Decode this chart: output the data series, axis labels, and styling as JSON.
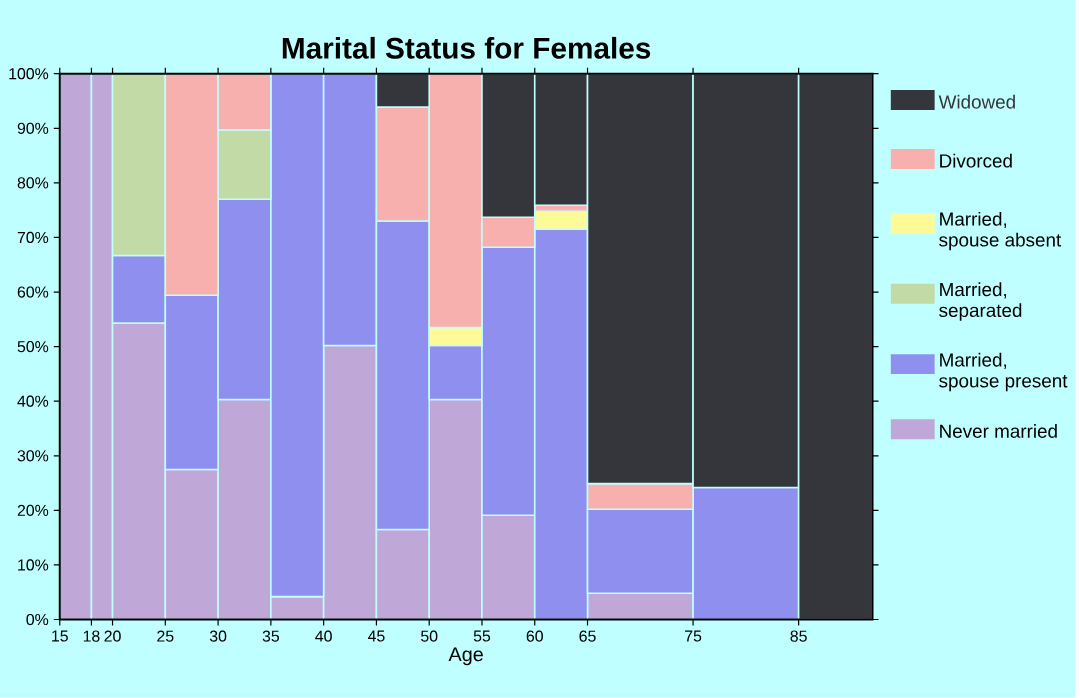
{
  "chart_data": {
    "type": "bar",
    "stacked": true,
    "title": "Marital Status for Females",
    "xlabel": "Age",
    "x": [
      16.5,
      19,
      22.5,
      27.5,
      32.5,
      37.5,
      42.5,
      47.5,
      52.5,
      57.5,
      62.5,
      70,
      80,
      88.5
    ],
    "xlim": [
      15,
      92
    ],
    "xticks": [
      15,
      18,
      20,
      25,
      30,
      35,
      40,
      45,
      50,
      55,
      60,
      65,
      75,
      85
    ],
    "ylim": [
      0,
      100
    ],
    "yticks": [
      {
        "value": 0,
        "label": "0%"
      },
      {
        "value": 10,
        "label": "10%"
      },
      {
        "value": 20,
        "label": "20%"
      },
      {
        "value": 30,
        "label": "30%"
      },
      {
        "value": 40,
        "label": "40%"
      },
      {
        "value": 50,
        "label": "50%"
      },
      {
        "value": 60,
        "label": "60%"
      },
      {
        "value": 70,
        "label": "70%"
      },
      {
        "value": 80,
        "label": "80%"
      },
      {
        "value": 90,
        "label": "90%"
      },
      {
        "value": 100,
        "label": "100%"
      }
    ],
    "legend": "right",
    "series": [
      {
        "name": "Never married",
        "color": "#bfa8d8",
        "values": [
          100,
          100,
          54.3,
          27.5,
          40.3,
          4.2,
          50.2,
          16.5,
          40.3,
          19.1,
          0,
          4.8,
          0,
          0
        ]
      },
      {
        "name": "Married, spouse present",
        "color": "#8f8ff0",
        "values": [
          0,
          0,
          12.4,
          31.9,
          36.7,
          95.8,
          49.8,
          56.5,
          9.9,
          49.1,
          71.5,
          15.4,
          24.2,
          0
        ]
      },
      {
        "name": "Married, separated",
        "color": "#c2dba6",
        "values": [
          0,
          0,
          33.3,
          0,
          12.7,
          0,
          0,
          0,
          0,
          0,
          0,
          0,
          0,
          0
        ]
      },
      {
        "name": "Married, spouse absent",
        "color": "#fffa98",
        "values": [
          0,
          0,
          0,
          0,
          0,
          0,
          0,
          0,
          3.3,
          0,
          3.3,
          0,
          0,
          0
        ]
      },
      {
        "name": "Divorced",
        "color": "#f8b0ae",
        "values": [
          0,
          0,
          0,
          40.6,
          10.3,
          0,
          0,
          20.9,
          46.5,
          5.5,
          1.1,
          4.7,
          0,
          0
        ]
      },
      {
        "name": "Widowed",
        "color": "#35363c",
        "values": [
          0,
          0,
          0,
          0,
          0,
          0,
          0,
          6.1,
          0,
          26.3,
          24.1,
          75.1,
          75.8,
          100
        ]
      }
    ]
  }
}
